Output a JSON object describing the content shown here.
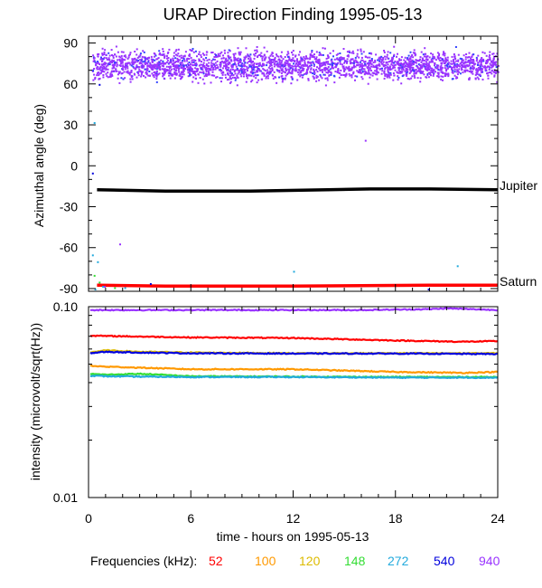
{
  "chart_data": [
    {
      "type": "scatter",
      "title": "URAP Direction Finding  1995-05-13",
      "ylabel": "Azimuthal angle (deg)",
      "xlim": [
        0,
        24
      ],
      "ylim": [
        -92,
        95
      ],
      "yticks": [
        -90,
        -60,
        -30,
        0,
        30,
        60,
        90
      ],
      "grid": false,
      "annotations": [
        {
          "text": "Jupiter",
          "y": -18
        },
        {
          "text": "Saturn",
          "y": -88
        }
      ],
      "series": [
        {
          "name": "Jupiter",
          "color": "#000000",
          "x": [
            0.5,
            4.5,
            9.5,
            14,
            16.5,
            20,
            24
          ],
          "y": [
            -17.5,
            -18.5,
            -18.5,
            -17.5,
            -17,
            -17,
            -17.5
          ]
        },
        {
          "name": "Saturn",
          "color": "#ff0000",
          "x": [
            0.5,
            4.5,
            8,
            12,
            16,
            20,
            24
          ],
          "y": [
            -87.5,
            -88.2,
            -88.2,
            -88.2,
            -87.8,
            -87.5,
            -87.5
          ]
        },
        {
          "name": "940",
          "color": "#9933ff",
          "x_range": [
            0.2,
            24
          ],
          "y_center": 74,
          "y_spread": 8
        }
      ]
    },
    {
      "type": "line",
      "ylabel": "intensity (microvolt/sqrt(Hz))",
      "xlabel": "time - hours on 1995-05-13",
      "xlim": [
        0,
        24
      ],
      "xticks": [
        0,
        6,
        12,
        18,
        24
      ],
      "ylim": [
        0.01,
        0.1
      ],
      "yscale": "log",
      "yticks": [
        "0.01",
        "0.10"
      ],
      "grid": false,
      "series": [
        {
          "name": "940",
          "color": "#9933ff",
          "x": [
            0,
            4,
            8,
            12,
            16,
            20,
            21,
            24
          ],
          "y": [
            0.096,
            0.096,
            0.096,
            0.096,
            0.096,
            0.097,
            0.098,
            0.096
          ]
        },
        {
          "name": "52",
          "color": "#ff0000",
          "x": [
            0,
            1,
            6,
            12,
            18,
            22,
            24
          ],
          "y": [
            0.0705,
            0.0702,
            0.069,
            0.0685,
            0.0665,
            0.0655,
            0.066
          ]
        },
        {
          "name": "120",
          "color": "#ddbb00",
          "x": [
            0,
            1,
            3,
            6,
            12,
            18,
            24
          ],
          "y": [
            0.0575,
            0.059,
            0.058,
            0.0575,
            0.057,
            0.057,
            0.057
          ]
        },
        {
          "name": "540",
          "color": "#0000dd",
          "x": [
            0,
            1,
            3,
            6,
            12,
            18,
            24
          ],
          "y": [
            0.057,
            0.058,
            0.0575,
            0.057,
            0.0568,
            0.0568,
            0.0565
          ]
        },
        {
          "name": "100",
          "color": "#ff9900",
          "x": [
            0,
            1,
            6,
            12,
            18,
            22,
            24
          ],
          "y": [
            0.049,
            0.0485,
            0.047,
            0.047,
            0.0455,
            0.045,
            0.0455
          ]
        },
        {
          "name": "148",
          "color": "#33dd33",
          "x": [
            0,
            1,
            3,
            6,
            12,
            18,
            24
          ],
          "y": [
            0.0445,
            0.044,
            0.0445,
            0.0432,
            0.043,
            0.0428,
            0.0428
          ]
        },
        {
          "name": "272",
          "color": "#22aadd",
          "x": [
            0,
            1,
            3,
            6,
            12,
            18,
            24
          ],
          "y": [
            0.0435,
            0.0432,
            0.043,
            0.0428,
            0.0428,
            0.0425,
            0.0425
          ]
        }
      ]
    }
  ],
  "legend": {
    "label": "Frequencies (kHz):",
    "items": [
      {
        "label": "52",
        "color": "#ff0000"
      },
      {
        "label": "100",
        "color": "#ff9900"
      },
      {
        "label": "120",
        "color": "#ddbb00"
      },
      {
        "label": "148",
        "color": "#33dd33"
      },
      {
        "label": "272",
        "color": "#22aadd"
      },
      {
        "label": "540",
        "color": "#0000dd"
      },
      {
        "label": "940",
        "color": "#9933ff"
      }
    ]
  }
}
